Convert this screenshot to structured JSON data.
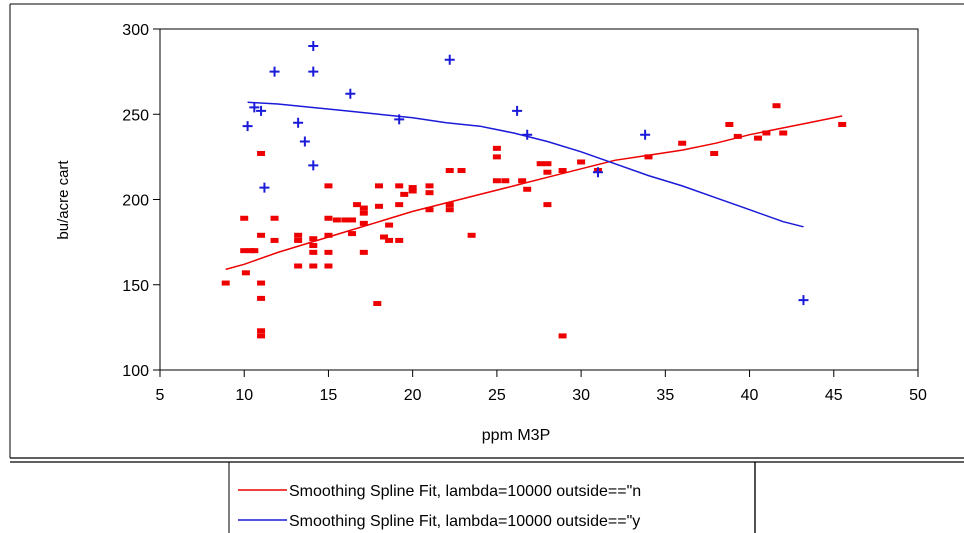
{
  "chart_data": {
    "type": "scatter",
    "xlabel": "ppm M3P",
    "ylabel": "bu/acre cart",
    "xlim": [
      5,
      50
    ],
    "ylim": [
      100,
      300
    ],
    "x_ticks": [
      5,
      10,
      15,
      20,
      25,
      30,
      35,
      40,
      45,
      50
    ],
    "y_ticks": [
      100,
      150,
      200,
      250,
      300
    ],
    "grid": false,
    "legend_placement": "bottom-center",
    "series": [
      {
        "marker": "square",
        "color": "#ee0000",
        "points": [
          [
            8.9,
            151
          ],
          [
            10.0,
            189
          ],
          [
            10.0,
            170
          ],
          [
            10.1,
            157
          ],
          [
            10.4,
            170
          ],
          [
            10.6,
            170
          ],
          [
            11.0,
            227
          ],
          [
            11.0,
            179
          ],
          [
            11.0,
            151
          ],
          [
            11.0,
            142
          ],
          [
            11.0,
            123
          ],
          [
            11.0,
            120
          ],
          [
            11.8,
            189
          ],
          [
            11.8,
            176
          ],
          [
            13.2,
            179
          ],
          [
            13.2,
            176
          ],
          [
            13.2,
            161
          ],
          [
            14.1,
            177
          ],
          [
            14.1,
            173
          ],
          [
            14.1,
            169
          ],
          [
            14.1,
            161
          ],
          [
            15.0,
            208
          ],
          [
            15.0,
            189
          ],
          [
            15.0,
            179
          ],
          [
            15.0,
            169
          ],
          [
            15.0,
            161
          ],
          [
            15.5,
            188
          ],
          [
            16.0,
            188
          ],
          [
            16.4,
            180
          ],
          [
            16.4,
            188
          ],
          [
            16.7,
            197
          ],
          [
            17.1,
            195
          ],
          [
            17.1,
            192
          ],
          [
            17.1,
            186
          ],
          [
            17.1,
            169
          ],
          [
            17.9,
            139
          ],
          [
            18.0,
            208
          ],
          [
            18.0,
            196
          ],
          [
            18.3,
            178
          ],
          [
            18.6,
            185
          ],
          [
            18.6,
            176
          ],
          [
            19.2,
            208
          ],
          [
            19.2,
            197
          ],
          [
            19.2,
            176
          ],
          [
            19.5,
            203
          ],
          [
            20.0,
            207
          ],
          [
            20.0,
            205
          ],
          [
            21.0,
            208
          ],
          [
            21.0,
            204
          ],
          [
            21.0,
            194
          ],
          [
            22.2,
            217
          ],
          [
            22.2,
            197
          ],
          [
            22.2,
            194
          ],
          [
            22.9,
            217
          ],
          [
            23.5,
            179
          ],
          [
            25.0,
            230
          ],
          [
            25.0,
            225
          ],
          [
            25.0,
            211
          ],
          [
            25.5,
            211
          ],
          [
            26.5,
            211
          ],
          [
            26.8,
            206
          ],
          [
            27.6,
            221
          ],
          [
            28.0,
            221
          ],
          [
            28.0,
            216
          ],
          [
            28.0,
            197
          ],
          [
            28.9,
            217
          ],
          [
            28.9,
            120
          ],
          [
            30.0,
            222
          ],
          [
            31.0,
            217
          ],
          [
            34.0,
            225
          ],
          [
            36.0,
            233
          ],
          [
            37.9,
            227
          ],
          [
            38.8,
            244
          ],
          [
            39.3,
            237
          ],
          [
            40.5,
            236
          ],
          [
            41.0,
            239
          ],
          [
            41.6,
            255
          ],
          [
            42.0,
            239
          ],
          [
            45.5,
            244
          ]
        ]
      },
      {
        "marker": "plus",
        "color": "#1a1ad9",
        "points": [
          [
            10.2,
            243
          ],
          [
            10.6,
            254
          ],
          [
            11.0,
            252
          ],
          [
            11.2,
            207
          ],
          [
            11.8,
            275
          ],
          [
            13.2,
            245
          ],
          [
            13.6,
            234
          ],
          [
            14.1,
            290
          ],
          [
            14.1,
            275
          ],
          [
            14.1,
            220
          ],
          [
            16.3,
            262
          ],
          [
            19.2,
            247
          ],
          [
            22.2,
            282
          ],
          [
            26.2,
            252
          ],
          [
            26.8,
            238
          ],
          [
            31.0,
            216
          ],
          [
            33.8,
            238
          ],
          [
            43.2,
            141
          ]
        ]
      },
      {
        "name": "Smoothing Spline Fit, lambda=10000  outside==\"n",
        "type": "line",
        "color": "#ee0000",
        "x": [
          8.9,
          10,
          12,
          14,
          16,
          18,
          20,
          22,
          24,
          26,
          28,
          30,
          32,
          34,
          36,
          38,
          40,
          42,
          44,
          45.5
        ],
        "values": [
          159,
          162,
          169,
          175,
          181,
          187,
          193,
          198,
          203,
          208,
          213,
          218,
          223,
          226,
          229,
          233,
          238,
          242,
          246,
          249
        ]
      },
      {
        "name": "Smoothing Spline Fit, lambda=10000  outside==\"y",
        "type": "line",
        "color": "#1a1ad9",
        "x": [
          10.2,
          12,
          14,
          16,
          18,
          20,
          22,
          24,
          26,
          28,
          30,
          32,
          34,
          36,
          38,
          40,
          42,
          43.2
        ],
        "values": [
          257,
          256,
          254,
          252,
          250,
          248,
          245,
          243,
          239,
          234,
          228,
          221,
          214,
          208,
          201,
          194,
          187,
          184
        ]
      }
    ]
  }
}
